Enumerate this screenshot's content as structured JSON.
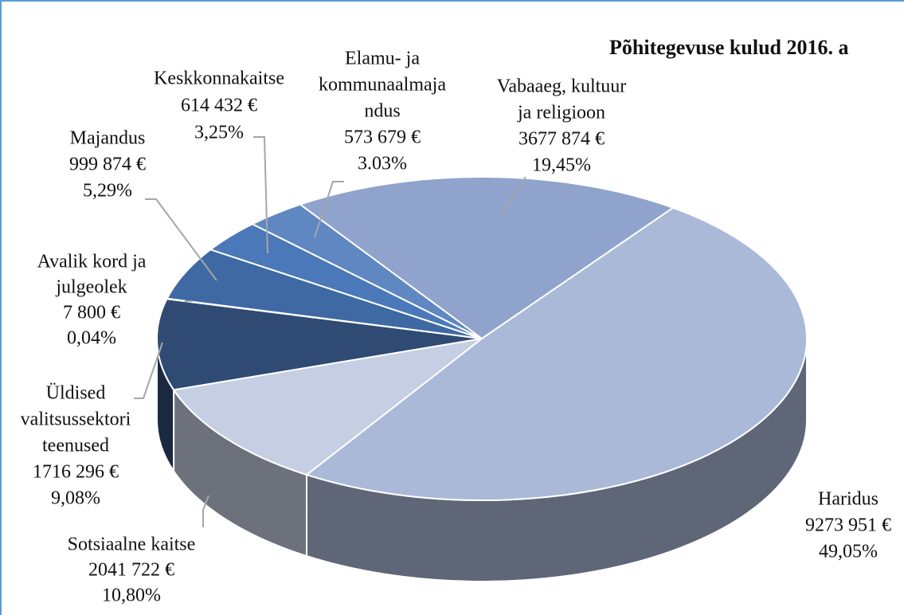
{
  "chart_data": {
    "type": "pie3d",
    "title": "Põhitegevuse kulud 2016. a",
    "categories": [
      [
        "Vabaaeg, kultuur",
        "ja religioon"
      ],
      [
        "Haridus"
      ],
      [
        "Sotsiaalne kaitse"
      ],
      [
        "Üldised",
        "valitsussektori",
        "teenused"
      ],
      [
        "Avalik kord ja",
        "julgeolek"
      ],
      [
        "Majandus"
      ],
      [
        "Keskkonnakaitse"
      ],
      [
        "Elamu- ja",
        "kommunaalmaja",
        "ndus"
      ]
    ],
    "values": [
      3677874,
      9273951,
      2041722,
      1716296,
      7800,
      999874,
      614432,
      573679
    ],
    "value_labels": [
      "3677 874 €",
      "9273 951 €",
      "2041 722 €",
      "1716 296 €",
      "7 800 €",
      "999 874 €",
      "614 432 €",
      "573 679 €"
    ],
    "percent_labels": [
      "19,45%",
      "49,05%",
      "10,80%",
      "9,08%",
      "0,04%",
      "5,29%",
      "3,25%",
      "3.03%"
    ],
    "colors": [
      "#8fa3cc",
      "#aab9d8",
      "#c5cee2",
      "#2f4b74",
      "#3a5f92",
      "#3e69a3",
      "#4a78b9",
      "#5f87c2"
    ]
  }
}
